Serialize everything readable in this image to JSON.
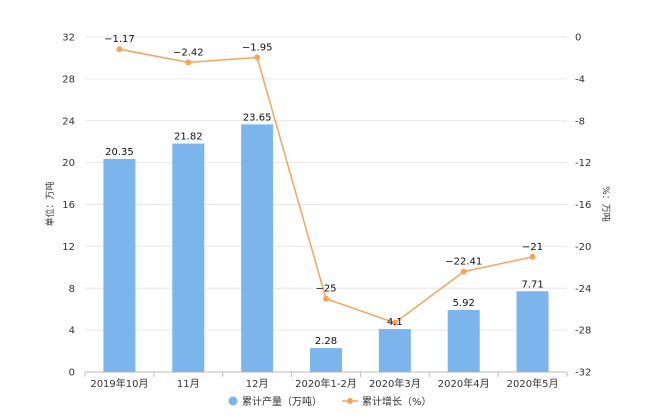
{
  "chart_data": {
    "type": "bar",
    "categories": [
      "2019年10月",
      "11月",
      "12月",
      "2020年1-2月",
      "2020年3月",
      "2020年4月",
      "2020年5月"
    ],
    "series": [
      {
        "name": "累计产量（万吨）",
        "type": "bar",
        "axis": "left",
        "color": "#7cb5ec",
        "values": [
          20.35,
          21.82,
          23.65,
          2.28,
          4.1,
          5.92,
          7.71
        ],
        "labels": [
          "20.35",
          "21.82",
          "23.65",
          "2.28",
          "4.1",
          "5.92",
          "7.71"
        ]
      },
      {
        "name": "累计增长（%）",
        "type": "line",
        "axis": "right",
        "color": "#f7a35c",
        "values": [
          -1.17,
          -2.42,
          -1.95,
          -25,
          -27.3,
          -22.41,
          -21
        ],
        "labels": [
          "−1.17",
          "−2.42",
          "−1.95",
          "−25",
          "",
          "−22.41",
          "−21"
        ]
      }
    ],
    "y_left": {
      "label": "单位：万吨",
      "ylim": [
        0,
        32
      ],
      "ticks": [
        "0",
        "4",
        "8",
        "12",
        "16",
        "20",
        "24",
        "28",
        "32"
      ]
    },
    "y_right": {
      "label": "%：万吨",
      "ylim": [
        -32,
        0
      ],
      "ticks": [
        "-32",
        "-28",
        "-24",
        "-20",
        "-16",
        "-12",
        "-8",
        "-4",
        "0"
      ]
    },
    "grid": true,
    "legend": "bottom-center"
  }
}
